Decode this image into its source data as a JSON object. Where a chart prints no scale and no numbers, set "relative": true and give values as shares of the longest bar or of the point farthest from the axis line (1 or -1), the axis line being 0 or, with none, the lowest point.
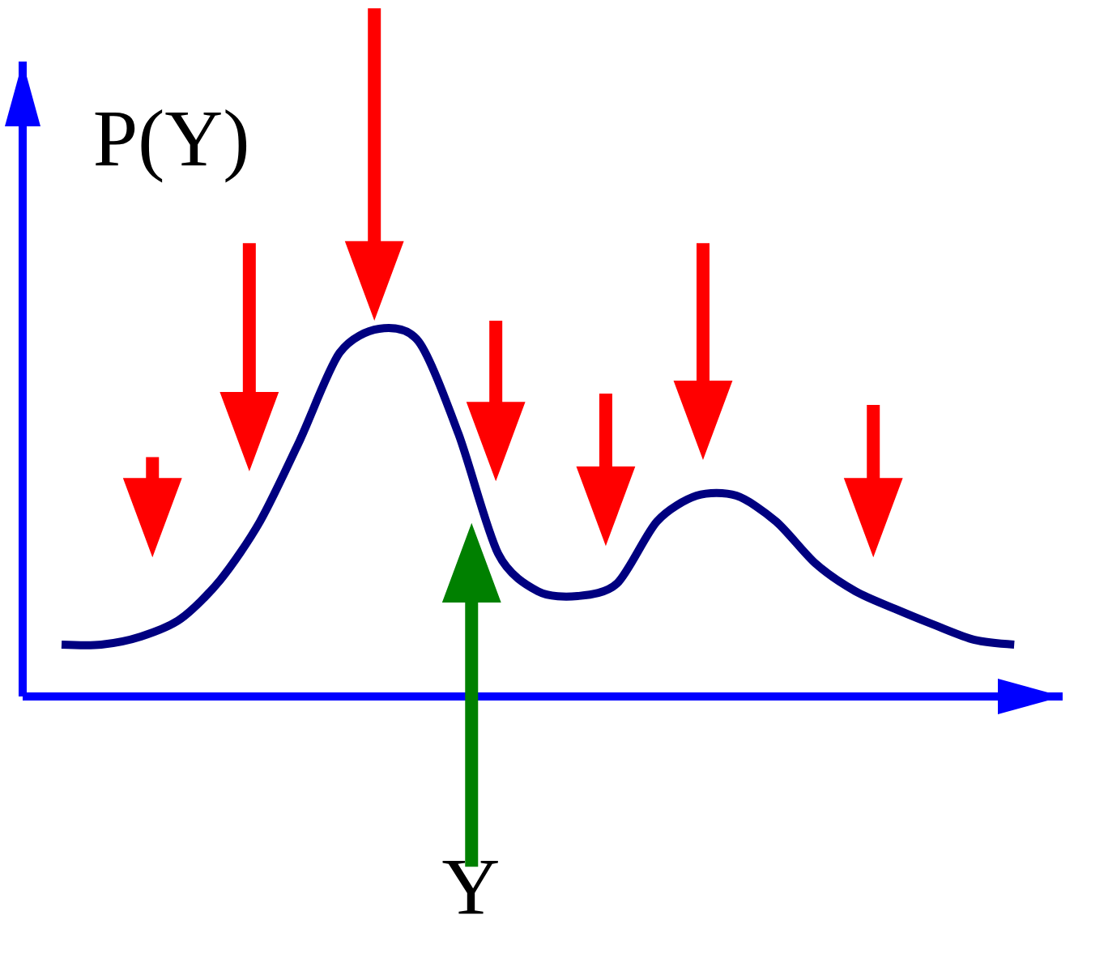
{
  "chart_data": {
    "type": "line",
    "relative": true,
    "xlabel": "Y",
    "ylabel": "P(Y)",
    "categories": [
      null,
      null,
      null,
      null,
      null,
      null,
      null,
      null,
      null,
      null,
      null,
      null,
      null,
      null,
      null,
      null,
      null,
      null,
      null,
      null,
      null,
      null,
      null,
      null,
      null
    ],
    "values": [
      0.141,
      0.141,
      0.163,
      0.211,
      0.317,
      0.476,
      0.696,
      0.934,
      1,
      0.965,
      0.714,
      0.388,
      0.286,
      0.273,
      0.308,
      0.476,
      0.546,
      0.546,
      0.476,
      0.361,
      0.286,
      0.238,
      0.194,
      0.154,
      0.141
    ],
    "color": "#000080"
  }
}
